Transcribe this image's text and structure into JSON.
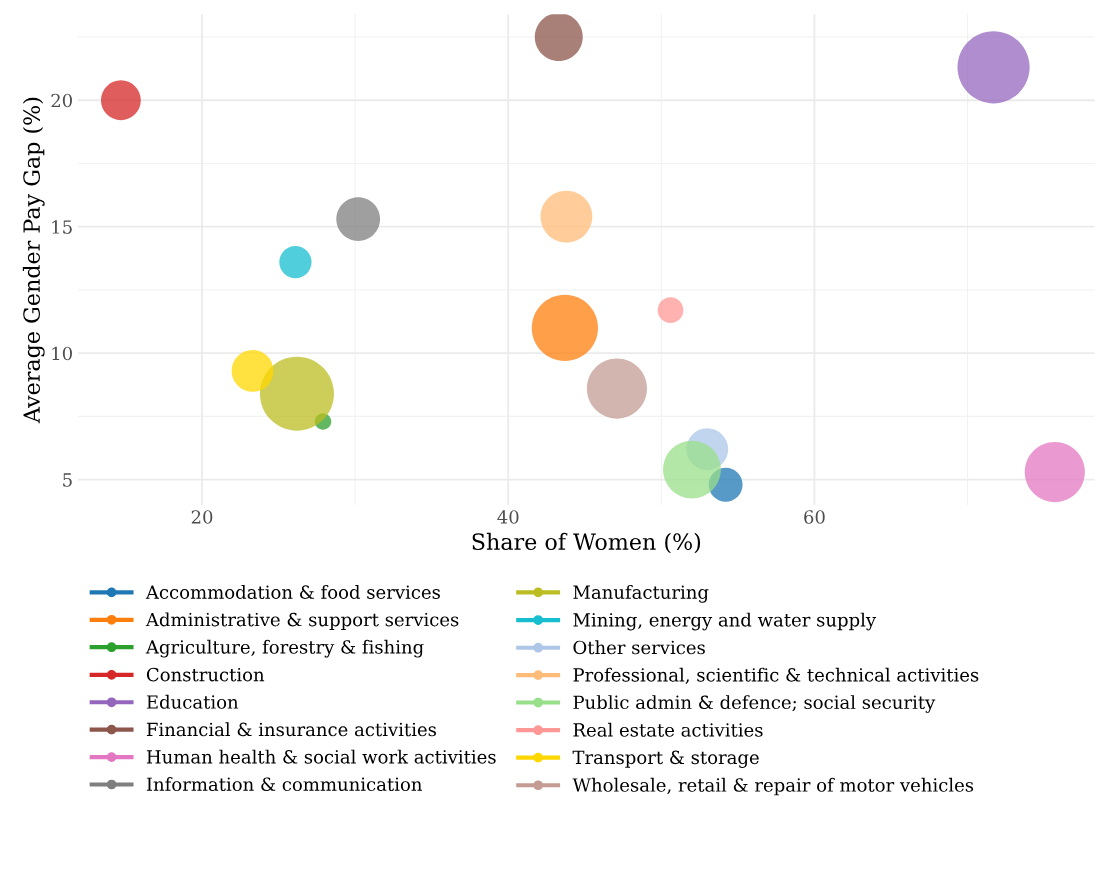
{
  "chart_data": {
    "type": "bubble",
    "xlabel": "Share of Women (%)",
    "ylabel": "Average Gender Pay Gap (%)",
    "xlim": [
      11.9,
      78.3
    ],
    "ylim": [
      4.0,
      23.4
    ],
    "xticks": [
      20,
      40,
      60
    ],
    "yticks": [
      5,
      10,
      15,
      20
    ],
    "grid": true,
    "legend": "bottom",
    "series": [
      {
        "name": "Accommodation & food services",
        "color": "#1f77b4",
        "x": [
          54.2
        ],
        "values": [
          4.8
        ],
        "sizes": [
          0.21
        ]
      },
      {
        "name": "Administrative & support services",
        "color": "#ff7f0e",
        "x": [
          43.7
        ],
        "values": [
          11.0
        ],
        "sizes": [
          0.8
        ]
      },
      {
        "name": "Agriculture, forestry & fishing",
        "color": "#2ca02c",
        "x": [
          27.9
        ],
        "values": [
          7.3
        ],
        "sizes": [
          0.05
        ]
      },
      {
        "name": "Construction",
        "color": "#d62728",
        "x": [
          14.7
        ],
        "values": [
          20.0
        ],
        "sizes": [
          0.29
        ]
      },
      {
        "name": "Education",
        "color": "#9467bd",
        "x": [
          71.7
        ],
        "values": [
          21.3
        ],
        "sizes": [
          0.95
        ]
      },
      {
        "name": "Financial & insurance activities",
        "color": "#8c564b",
        "x": [
          43.3
        ],
        "values": [
          22.5
        ],
        "sizes": [
          0.42
        ]
      },
      {
        "name": "Human health & social work activities",
        "color": "#e377c2",
        "x": [
          75.7
        ],
        "values": [
          5.3
        ],
        "sizes": [
          0.66
        ]
      },
      {
        "name": "Information & communication",
        "color": "#7f7f7f",
        "x": [
          30.2
        ],
        "values": [
          15.3
        ],
        "sizes": [
          0.35
        ]
      },
      {
        "name": "Manufacturing",
        "color": "#bcbd22",
        "x": [
          26.2
        ],
        "values": [
          8.4
        ],
        "sizes": [
          1.0
        ]
      },
      {
        "name": "Mining, energy and water supply",
        "color": "#17becf",
        "x": [
          26.1
        ],
        "values": [
          13.6
        ],
        "sizes": [
          0.19
        ]
      },
      {
        "name": "Other services",
        "color": "#aec7e8",
        "x": [
          53.0
        ],
        "values": [
          6.2
        ],
        "sizes": [
          0.32
        ]
      },
      {
        "name": "Professional, scientific & technical activities",
        "color": "#ffbb78",
        "x": [
          43.8
        ],
        "values": [
          15.4
        ],
        "sizes": [
          0.49
        ]
      },
      {
        "name": "Public admin & defence; social security",
        "color": "#98df8a",
        "x": [
          52.0
        ],
        "values": [
          5.4
        ],
        "sizes": [
          0.61
        ]
      },
      {
        "name": "Real estate activities",
        "color": "#ff9896",
        "x": [
          50.6
        ],
        "values": [
          11.7
        ],
        "sizes": [
          0.12
        ]
      },
      {
        "name": "Transport & storage",
        "color": "#ffd700",
        "x": [
          23.3
        ],
        "values": [
          9.3
        ],
        "sizes": [
          0.32
        ]
      },
      {
        "name": "Wholesale, retail & repair of motor vehicles",
        "color": "#c49c94",
        "x": [
          47.1
        ],
        "values": [
          8.6
        ],
        "sizes": [
          0.66
        ]
      }
    ]
  }
}
